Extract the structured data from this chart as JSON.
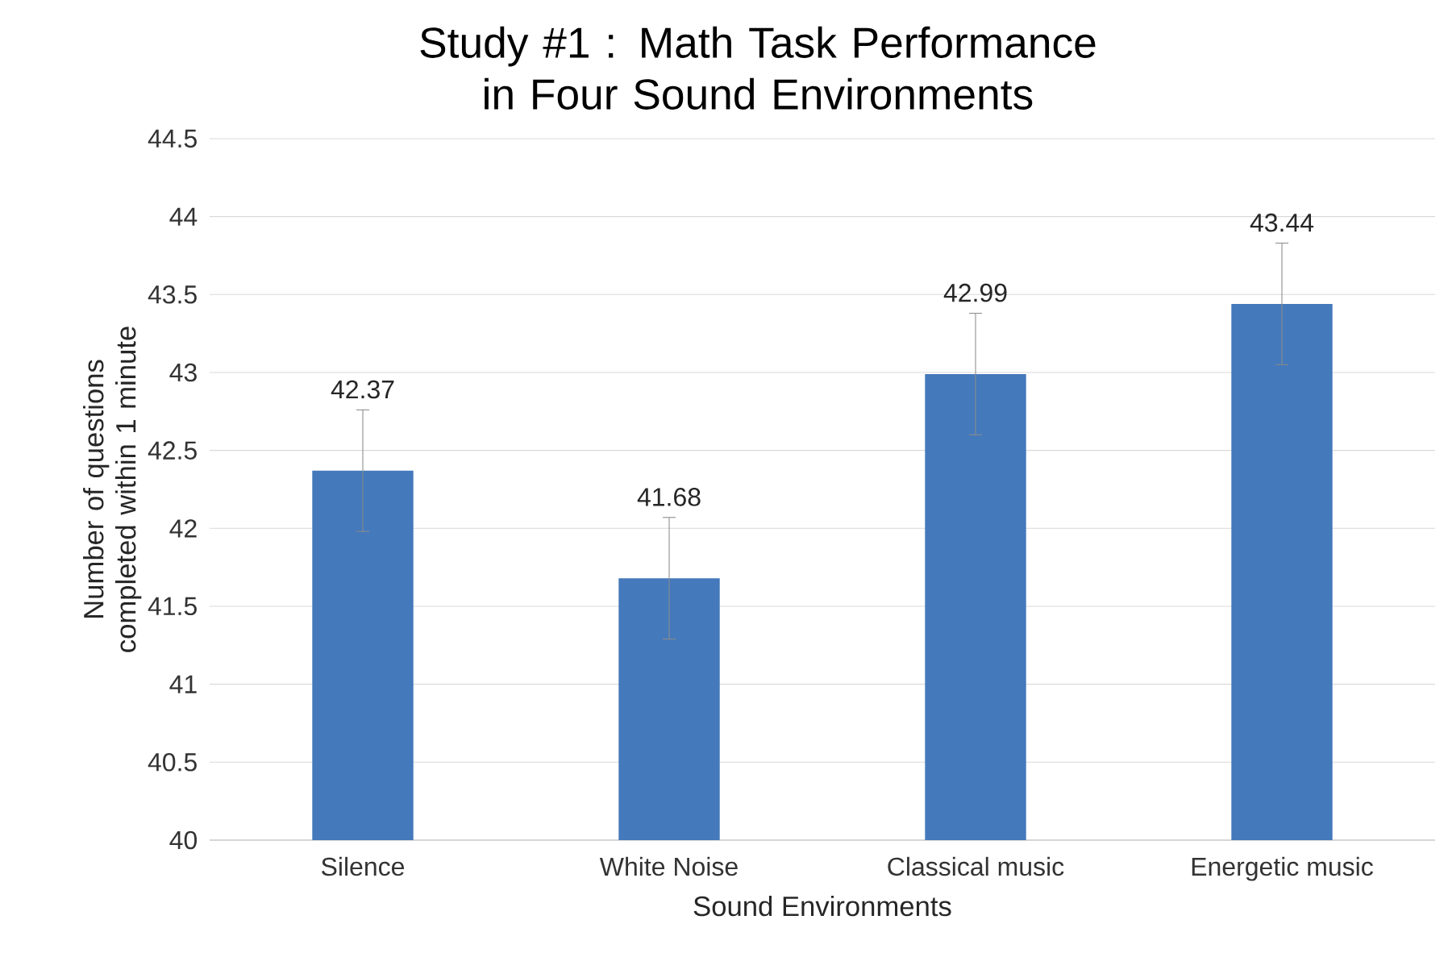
{
  "chart_data": {
    "type": "bar",
    "title": "Study #1 : Math Task Performance in Four Sound Environments",
    "xlabel": "Sound Environments",
    "ylabel": "Number of questions completed within 1 minute",
    "categories": [
      "Silence",
      "White Noise",
      "Classical music",
      "Energetic music"
    ],
    "values": [
      42.37,
      41.68,
      42.99,
      43.44
    ],
    "errors": [
      0.39,
      0.39,
      0.39,
      0.39
    ],
    "color": "#4479bb",
    "ylim": [
      40,
      44.5
    ],
    "yticks": [
      40,
      40.5,
      41,
      41.5,
      42,
      42.5,
      43,
      43.5,
      44,
      44.5
    ],
    "grid": "y",
    "data_labels": true
  }
}
